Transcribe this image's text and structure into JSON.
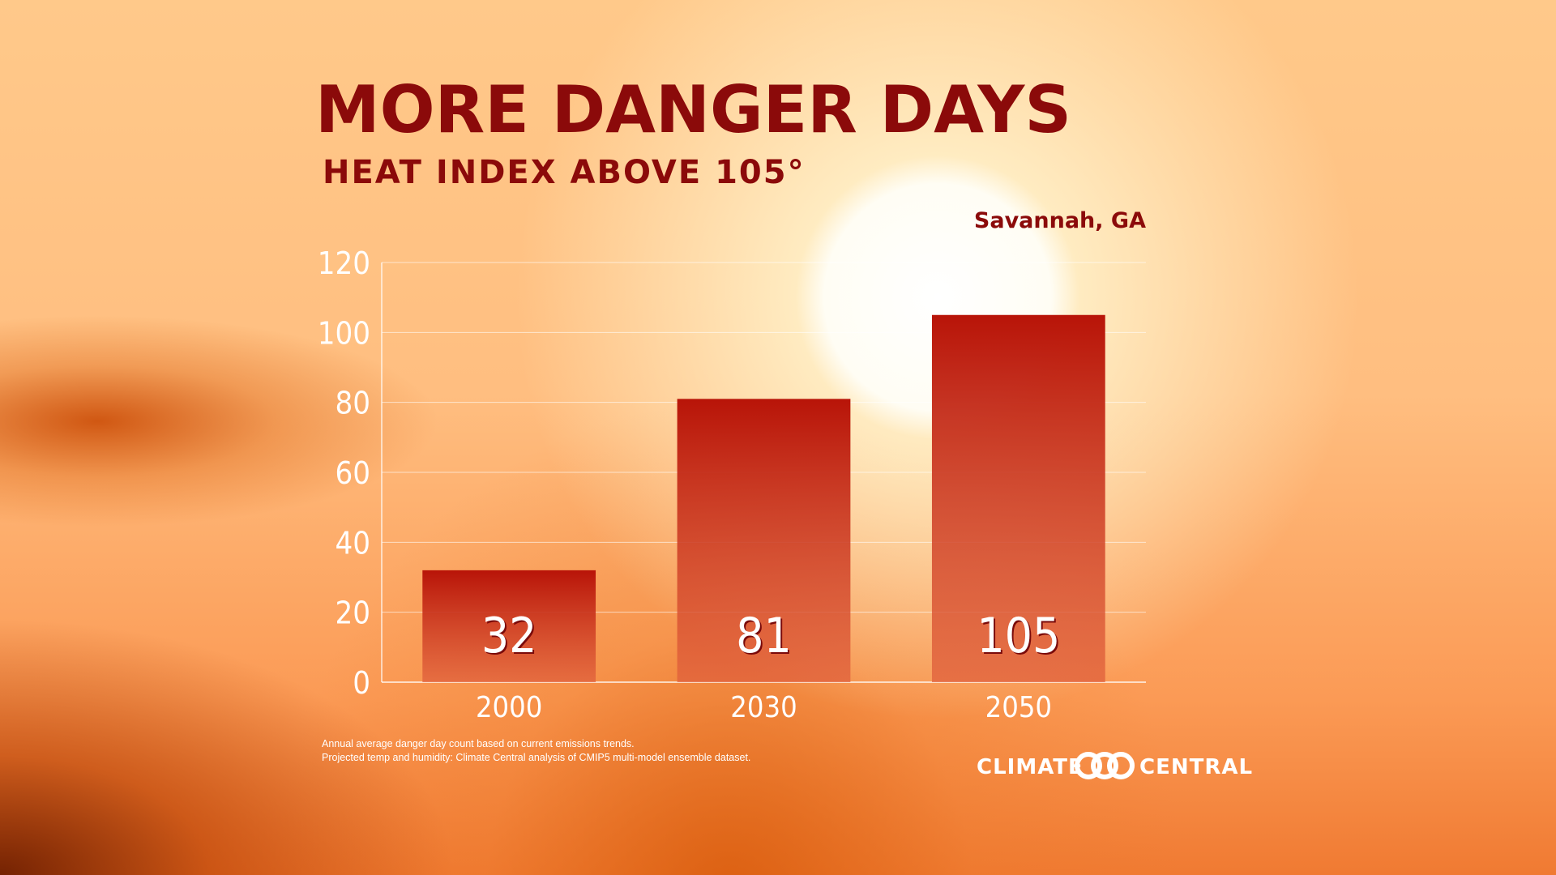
{
  "chart_data": {
    "type": "bar",
    "title": "MORE DANGER DAYS",
    "subtitle": "HEAT INDEX ABOVE 105°",
    "location": "Savannah, GA",
    "categories": [
      "2000",
      "2030",
      "2050"
    ],
    "values": [
      32,
      81,
      105
    ],
    "color": "#b81408",
    "ylim": [
      0,
      120
    ],
    "yticks": [
      0,
      20,
      40,
      60,
      80,
      100,
      120
    ],
    "grid": true,
    "notes": [
      "Annual average danger day count based on current emissions trends.",
      "Projected temp and humidity: Climate Central analysis of CMIP5 multi-model ensemble dataset."
    ],
    "brand": [
      "CLIMATE",
      "CENTRAL"
    ]
  }
}
